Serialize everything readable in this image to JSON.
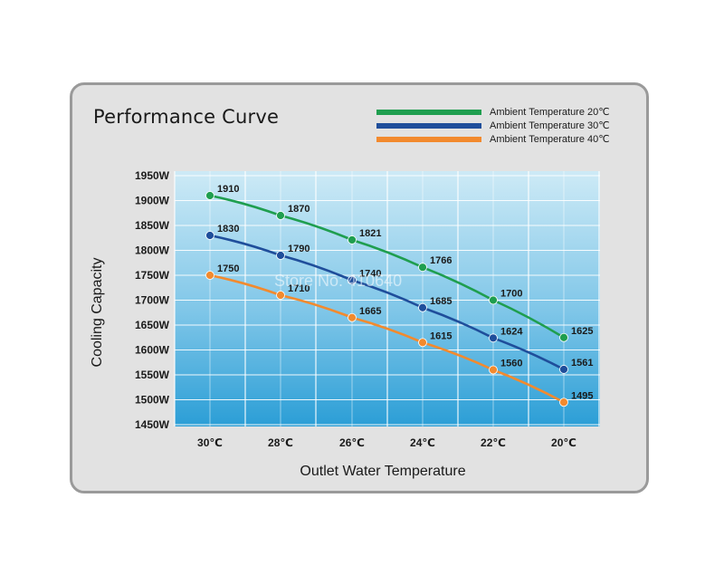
{
  "chart_data": {
    "type": "line",
    "title": "Performance Curve",
    "xlabel": "Outlet Water Temperature",
    "ylabel": "Cooling Capacity",
    "categories": [
      "30℃",
      "28℃",
      "26℃",
      "24℃",
      "22℃",
      "20℃"
    ],
    "y_ticks": [
      "1950W",
      "1900W",
      "1850W",
      "1800W",
      "1750W",
      "1700W",
      "1650W",
      "1600W",
      "1550W",
      "1500W",
      "1450W"
    ],
    "ylim": [
      1450,
      1950
    ],
    "grid": true,
    "legend_position": "top-right",
    "series": [
      {
        "name": "Ambient Temperature 20℃",
        "color": "#1f9e4f",
        "values": [
          1910,
          1870,
          1821,
          1766,
          1700,
          1625
        ]
      },
      {
        "name": "Ambient Temperature 30℃",
        "color": "#1f4e9b",
        "values": [
          1830,
          1790,
          1740,
          1685,
          1624,
          1561
        ]
      },
      {
        "name": "Ambient Temperature 40℃",
        "color": "#f28a2e",
        "values": [
          1750,
          1710,
          1665,
          1615,
          1560,
          1495
        ]
      }
    ]
  },
  "watermark": "Store No: 410640"
}
